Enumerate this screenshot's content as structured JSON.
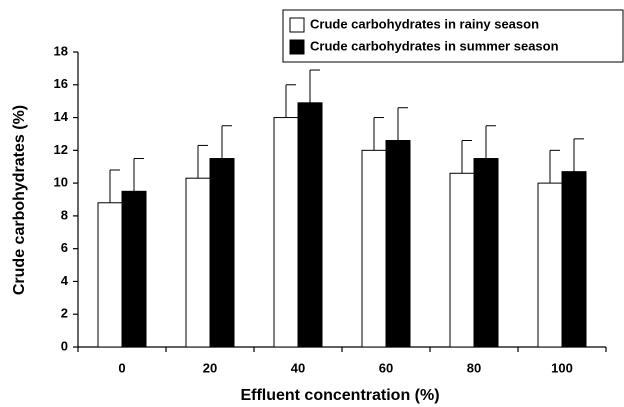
{
  "chart_data": {
    "type": "bar",
    "xlabel": "Effluent concentration (%)",
    "ylabel": "Crude carbohydrates (%)",
    "categories": [
      "0",
      "20",
      "40",
      "60",
      "80",
      "100"
    ],
    "series": [
      {
        "name": "Crude carbohydrates in rainy season",
        "color": "#ffffff",
        "values": [
          8.8,
          10.3,
          14.0,
          12.0,
          10.6,
          10.0
        ],
        "errors": [
          2.0,
          2.0,
          2.0,
          2.0,
          2.0,
          2.0
        ]
      },
      {
        "name": "Crude carbohydrates in summer season",
        "color": "#000000",
        "values": [
          9.5,
          11.5,
          14.9,
          12.6,
          11.5,
          10.7
        ],
        "errors": [
          2.0,
          2.0,
          2.0,
          2.0,
          2.0,
          2.0
        ]
      }
    ],
    "ylim": [
      0,
      18
    ],
    "yticks": [
      0,
      2,
      4,
      6,
      8,
      10,
      12,
      14,
      16,
      18
    ],
    "grid": false,
    "legend": "upper right"
  }
}
